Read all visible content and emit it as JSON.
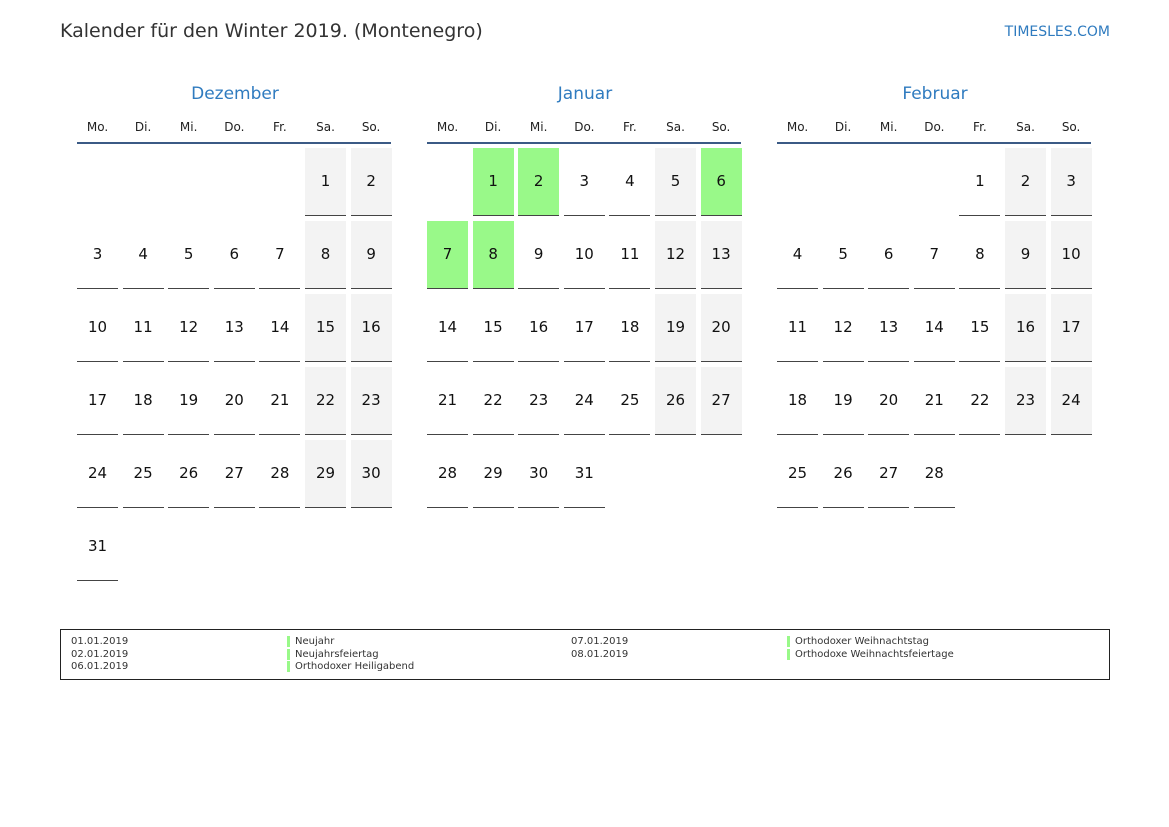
{
  "title": "Kalender für den Winter 2019. (Montenegro)",
  "site": "TIMESLES.COM",
  "colors": {
    "holiday": "#99f989",
    "weekend": "#f3f3f3",
    "accent": "#2f7bbf"
  },
  "weekdays": [
    "Mo.",
    "Di.",
    "Mi.",
    "Do.",
    "Fr.",
    "Sa.",
    "So."
  ],
  "months": [
    {
      "name": "Dezember",
      "weeks": [
        [
          null,
          null,
          null,
          null,
          null,
          1,
          2
        ],
        [
          3,
          4,
          5,
          6,
          7,
          8,
          9
        ],
        [
          10,
          11,
          12,
          13,
          14,
          15,
          16
        ],
        [
          17,
          18,
          19,
          20,
          21,
          22,
          23
        ],
        [
          24,
          25,
          26,
          27,
          28,
          29,
          30
        ],
        [
          31
        ]
      ],
      "holidays": []
    },
    {
      "name": "Januar",
      "weeks": [
        [
          null,
          1,
          2,
          3,
          4,
          5,
          6
        ],
        [
          7,
          8,
          9,
          10,
          11,
          12,
          13
        ],
        [
          14,
          15,
          16,
          17,
          18,
          19,
          20
        ],
        [
          21,
          22,
          23,
          24,
          25,
          26,
          27
        ],
        [
          28,
          29,
          30,
          31
        ]
      ],
      "holidays": [
        1,
        2,
        6,
        7,
        8
      ]
    },
    {
      "name": "Februar",
      "weeks": [
        [
          null,
          null,
          null,
          null,
          1,
          2,
          3
        ],
        [
          4,
          5,
          6,
          7,
          8,
          9,
          10
        ],
        [
          11,
          12,
          13,
          14,
          15,
          16,
          17
        ],
        [
          18,
          19,
          20,
          21,
          22,
          23,
          24
        ],
        [
          25,
          26,
          27,
          28
        ]
      ],
      "holidays": []
    }
  ],
  "legend": [
    {
      "date": "01.01.2019",
      "name": "Neujahr"
    },
    {
      "date": "02.01.2019",
      "name": "Neujahrsfeiertag"
    },
    {
      "date": "06.01.2019",
      "name": "Orthodoxer Heiligabend"
    },
    {
      "date": "07.01.2019",
      "name": "Orthodoxer Weihnachtstag"
    },
    {
      "date": "08.01.2019",
      "name": "Orthodoxe Weihnachtsfeiertage"
    }
  ]
}
